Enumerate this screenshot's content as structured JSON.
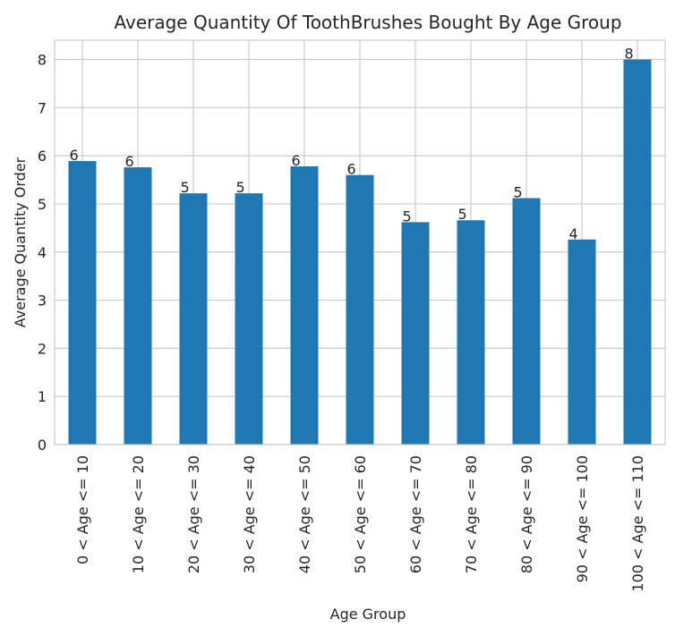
{
  "chart_data": {
    "type": "bar",
    "title": "Average Quantity Of ToothBrushes Bought By Age Group",
    "xlabel": "Age Group",
    "ylabel": "Average Quantity Order",
    "categories": [
      "0 < Age <= 10",
      "10 < Age <= 20",
      "20 < Age <= 30",
      "30 < Age <= 40",
      "40 < Age <= 50",
      "50 < Age <= 60",
      "60 < Age <= 70",
      "70 < Age <= 80",
      "80 < Age <= 90",
      "90 < Age <= 100",
      "100 < Age <= 110"
    ],
    "values": [
      5.89,
      5.76,
      5.22,
      5.22,
      5.78,
      5.6,
      4.62,
      4.66,
      5.12,
      4.26,
      8.0
    ],
    "data_labels": [
      "6",
      "6",
      "5",
      "5",
      "6",
      "6",
      "5",
      "5",
      "5",
      "4",
      "8"
    ],
    "ylim": [
      0,
      8.4
    ],
    "yticks": [
      0,
      1,
      2,
      3,
      4,
      5,
      6,
      7,
      8
    ],
    "grid": true,
    "bar_color": "#1f77b4"
  }
}
